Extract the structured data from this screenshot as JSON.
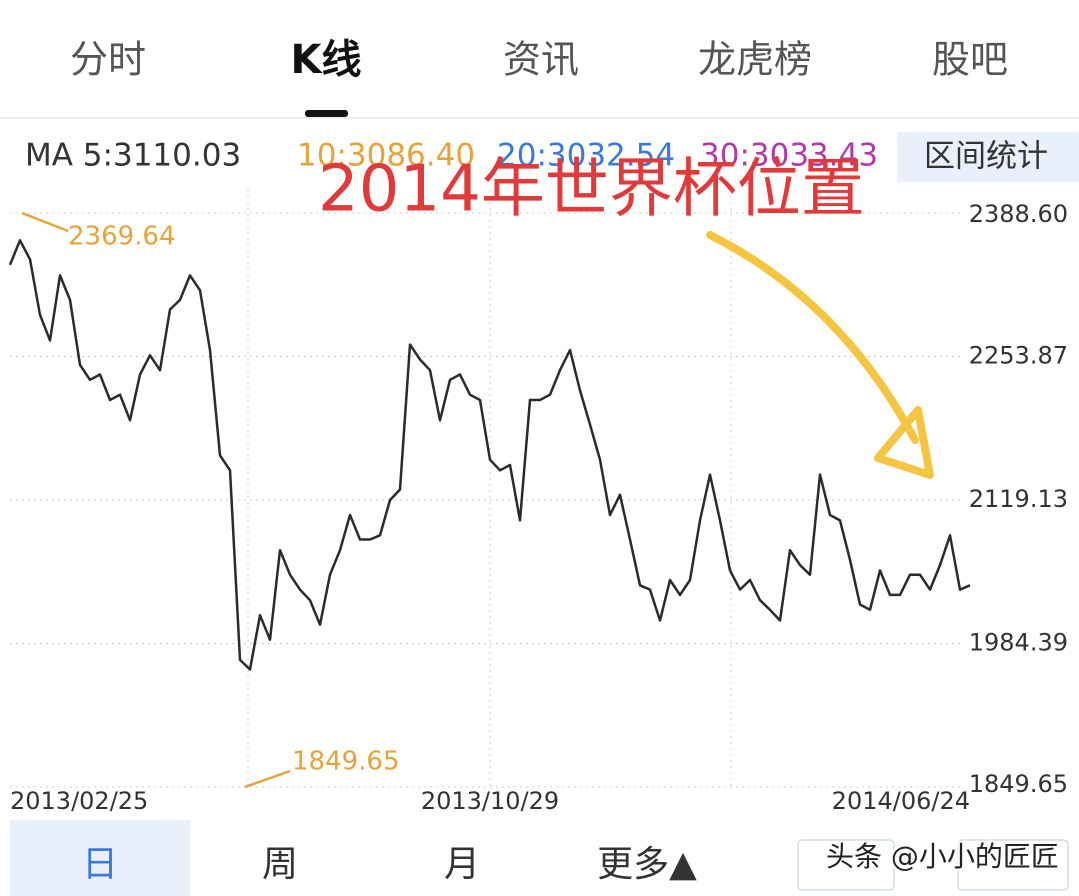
{
  "tabs": [
    "分时",
    "K线",
    "资讯",
    "龙虎榜",
    "股吧"
  ],
  "ma": {
    "label": "MA 5:3110.03",
    "ma10": "10:3086.40",
    "ma20": "20:3032.54",
    "ma30": "30:3033.43"
  },
  "range_button": "区间统计",
  "annotation": "2014年世界杯位置",
  "chart_data": {
    "type": "line",
    "color": "#2b2b2b",
    "grid": true,
    "ylim": [
      1849.65,
      2388.6
    ],
    "yticks": [
      1849.65,
      1984.39,
      2119.13,
      2253.87,
      {
        "value": 2388.6,
        "label": "2388.60"
      }
    ],
    "max_label": "2369.64",
    "min_label": "1849.65",
    "categories": [
      "2013/02/25",
      null,
      null,
      null,
      null,
      null,
      null,
      null,
      null,
      null,
      null,
      null,
      null,
      null,
      null,
      null,
      null,
      null,
      null,
      null,
      null,
      null,
      null,
      null,
      null,
      null,
      null,
      null,
      null,
      null,
      null,
      null,
      null,
      null,
      null,
      null,
      null,
      null,
      null,
      null,
      null,
      null,
      null,
      null,
      null,
      null,
      null,
      null,
      "2013/10/29",
      null,
      null,
      null,
      null,
      null,
      null,
      null,
      null,
      null,
      null,
      null,
      null,
      null,
      null,
      null,
      null,
      null,
      null,
      null,
      null,
      null,
      null,
      null,
      null,
      null,
      null,
      null,
      null,
      null,
      null,
      null,
      null,
      null,
      null,
      null,
      null,
      null,
      null,
      null,
      null,
      null,
      null,
      null,
      null,
      null,
      null,
      null,
      "2014/06/24"
    ],
    "values": [
      2340,
      2363,
      2345,
      2293,
      2269,
      2330,
      2307,
      2246,
      2232,
      2237,
      2213,
      2218,
      2194,
      2237,
      2255,
      2241,
      2298,
      2307,
      2330,
      2316,
      2260,
      2161,
      2147,
      1969,
      1960,
      2011,
      1988,
      2072,
      2049,
      2035,
      2025,
      2002,
      2049,
      2072,
      2105,
      2082,
      2082,
      2086,
      2119,
      2129,
      2265,
      2251,
      2241,
      2194,
      2232,
      2237,
      2218,
      2213,
      2157,
      2147,
      2152,
      2100,
      2213,
      2213,
      2218,
      2241,
      2260,
      2222,
      2190,
      2157,
      2105,
      2124,
      2082,
      2039,
      2035,
      2006,
      2044,
      2030,
      2044,
      2100,
      2143,
      2100,
      2053,
      2035,
      2044,
      2025,
      2016,
      2006,
      2072,
      2058,
      2049,
      2143,
      2105,
      2100,
      2063,
      2021,
      2016,
      2053,
      2030,
      2030,
      2049,
      2049,
      2035,
      2058,
      2086,
      2035,
      2039
    ]
  },
  "periods": [
    "日",
    "周",
    "月",
    "更多▲"
  ],
  "watermark": "头条 @小小的匠匠"
}
